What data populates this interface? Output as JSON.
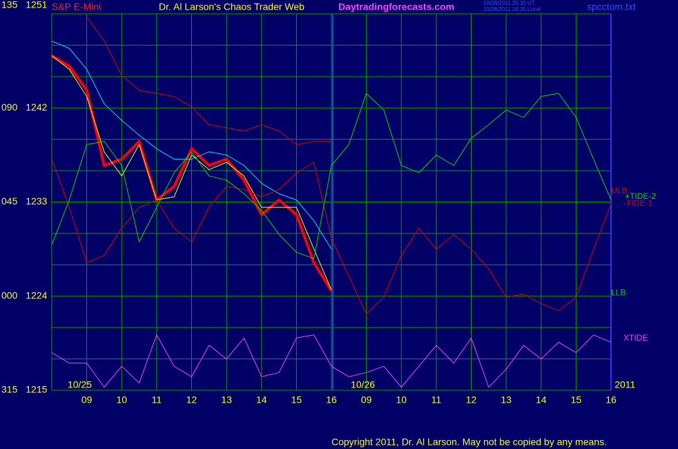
{
  "chart_data": {
    "type": "line",
    "symbol": "S&P E-Mini",
    "title": "Dr. Al Larson's Chaos Trader Web",
    "website": "Daytradingforecasts.com",
    "timestamp_ut": "10/26/2011 20:30 UT",
    "timestamp_local": "10/26/2011 16:30 Local",
    "filename": "spcctom.txt",
    "copyright": "Copyright 2011, Dr. Al Larson. May not be copied by any means.",
    "xlim": [
      0,
      16
    ],
    "xticks": [
      {
        "value": 1,
        "label": "09"
      },
      {
        "value": 2,
        "label": "10"
      },
      {
        "value": 3,
        "label": "11"
      },
      {
        "value": 4,
        "label": "12"
      },
      {
        "value": 5,
        "label": "13"
      },
      {
        "value": 6,
        "label": "14"
      },
      {
        "value": 7,
        "label": "15"
      },
      {
        "value": 8,
        "label": "16"
      },
      {
        "value": 9,
        "label": "09"
      },
      {
        "value": 10,
        "label": "10"
      },
      {
        "value": 11,
        "label": "11"
      },
      {
        "value": 12,
        "label": "12"
      },
      {
        "value": 13,
        "label": "13"
      },
      {
        "value": 14,
        "label": "14"
      },
      {
        "value": 15,
        "label": "15"
      },
      {
        "value": 16,
        "label": "16"
      }
    ],
    "day_separator": 8,
    "ylim": [
      1215,
      1251
    ],
    "yticks": [
      {
        "value": 1251,
        "label": "135 1251"
      },
      {
        "value": 1242,
        "label": "090 1242"
      },
      {
        "value": 1233,
        "label": "045 1233"
      },
      {
        "value": 1224,
        "label": "000 1224"
      },
      {
        "value": 1215,
        "label": "315 1215"
      }
    ],
    "yminor": [
      1248,
      1245,
      1239,
      1236,
      1230,
      1227,
      1221,
      1218
    ],
    "grid": true,
    "grid_color": "#00a000",
    "annotations": [
      {
        "text": "10/25",
        "x": 0.8
      },
      {
        "text": "10/26",
        "x": 8.9
      },
      {
        "text": "2011",
        "x": 16.4
      }
    ],
    "extra_labels": [
      {
        "text": "LLB",
        "color": "#00e000",
        "value": 1224.3
      }
    ],
    "x": [
      0,
      0.5,
      1,
      1.5,
      2,
      2.5,
      3,
      3.5,
      4,
      4.5,
      5,
      5.5,
      6,
      6.5,
      7,
      7.5,
      8,
      8.5,
      9,
      9.5,
      10,
      10.5,
      11,
      11.5,
      12,
      12.5,
      13,
      13.5,
      14,
      14.5,
      15,
      15.5,
      16
    ],
    "series": [
      {
        "color": "#ff0000",
        "values": [
          1247.0,
          1246.0,
          1243.7,
          1236.5,
          1237.1,
          1238.8,
          1233.2,
          1234.5,
          1238.1,
          1236.5,
          1237.1,
          1235.1,
          1231.8,
          1233.2,
          1231.8,
          1227.2,
          1224.5,
          null,
          null,
          null,
          null,
          null,
          null,
          null,
          null,
          null,
          null,
          null,
          null,
          null,
          null,
          null,
          null
        ]
      },
      {
        "color": "#00e0ff",
        "values": [
          1248.4,
          1247.7,
          1245.7,
          1242.4,
          1240.8,
          1239.4,
          1238.1,
          1237.1,
          1237.1,
          1237.8,
          1237.5,
          1236.5,
          1234.8,
          1233.8,
          1233.2,
          1231.2,
          1228.5,
          null,
          null,
          null,
          null,
          null,
          null,
          null,
          null,
          null,
          null,
          null,
          null,
          null,
          null,
          null,
          null
        ]
      },
      {
        "color": "#ffff00",
        "values": [
          1247.0,
          1245.7,
          1243.1,
          1237.8,
          1235.5,
          1238.5,
          1233.2,
          1233.5,
          1237.5,
          1236.1,
          1236.8,
          1235.5,
          1232.5,
          1232.5,
          1232.5,
          1228.5,
          1224.6,
          null,
          null,
          null,
          null,
          null,
          null,
          null,
          null,
          null,
          null,
          null,
          null,
          null,
          null,
          null,
          null
        ]
      },
      {
        "name": "ULB",
        "color": "#e00000",
        "values": [
          null,
          null,
          1250.7,
          1248.4,
          1245.1,
          1243.7,
          1243.4,
          1243.1,
          1242.1,
          1240.4,
          1240.1,
          1239.8,
          1240.4,
          1239.8,
          1238.5,
          1238.8,
          1238.8,
          null,
          null,
          null,
          null,
          null,
          null,
          null,
          null,
          null,
          null,
          null,
          null,
          null,
          null,
          null,
          null
        ]
      },
      {
        "name": "-TIDE-1",
        "color": "#e00000",
        "values": [
          1237.1,
          1232.5,
          1227.2,
          1227.9,
          1230.5,
          1232.5,
          1233.2,
          1230.5,
          1229.2,
          1232.5,
          1234.5,
          1234.2,
          1233.5,
          1234.2,
          1235.8,
          1236.8,
          1229.5,
          1225.9,
          1222.3,
          1223.9,
          1227.9,
          1230.5,
          1228.5,
          1229.9,
          1228.5,
          1226.6,
          1223.9,
          1224.2,
          1223.3,
          1222.6,
          1223.9,
          1228.5,
          1232.8
        ]
      },
      {
        "name": "+TIDE-2",
        "color": "#00e000",
        "values": [
          1228.9,
          1233.2,
          1238.5,
          1238.8,
          1236.5,
          1229.2,
          1232.5,
          1235.8,
          1237.8,
          1235.5,
          1235.1,
          1233.8,
          1232.2,
          1229.9,
          1228.2,
          1227.6,
          1236.5,
          1238.5,
          1243.4,
          1241.8,
          1236.5,
          1235.8,
          1237.5,
          1236.5,
          1239.1,
          1240.4,
          1241.8,
          1241.1,
          1243.1,
          1243.4,
          1241.1,
          1237.1,
          1233.2
        ]
      },
      {
        "name": "XTIDE",
        "color": "#ff40ff",
        "values": [
          1218.6,
          1217.6,
          1217.6,
          1215.3,
          1217.3,
          1215.7,
          1220.3,
          1217.3,
          1216.3,
          1219.3,
          1218.0,
          1220.0,
          1216.3,
          1216.7,
          1220.0,
          1220.3,
          1217.3,
          1216.3,
          1216.7,
          1217.3,
          1215.3,
          1217.3,
          1219.3,
          1217.6,
          1220.0,
          1215.3,
          1217.0,
          1219.3,
          1218.0,
          1219.6,
          1218.6,
          1220.3,
          1219.6
        ]
      }
    ]
  }
}
